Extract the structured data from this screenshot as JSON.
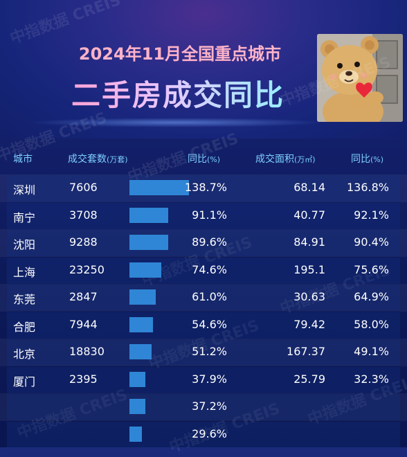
{
  "header": {
    "title_line1": "2024年11月全国重点城市",
    "title_line2": "二手房成交同比"
  },
  "watermark_text": "中指数据 CREIS",
  "columns": {
    "city": "城市",
    "units": "成交套数",
    "units_unit": "(万套)",
    "units_yoy": "同比",
    "units_yoy_unit": "(%)",
    "area": "成交面积",
    "area_unit": "(万㎡)",
    "area_yoy": "同比",
    "area_yoy_unit": "(%)"
  },
  "chart_data": {
    "type": "table",
    "bar_max": 138.7,
    "rows": [
      {
        "city": "深圳",
        "units": "7606",
        "units_yoy": 138.7,
        "units_yoy_label": "138.7%",
        "area": "68.14",
        "area_yoy_label": "136.8%"
      },
      {
        "city": "南宁",
        "units": "3708",
        "units_yoy": 91.1,
        "units_yoy_label": "91.1%",
        "area": "40.77",
        "area_yoy_label": "92.1%"
      },
      {
        "city": "沈阳",
        "units": "9288",
        "units_yoy": 89.6,
        "units_yoy_label": "89.6%",
        "area": "84.91",
        "area_yoy_label": "90.4%"
      },
      {
        "city": "上海",
        "units": "23250",
        "units_yoy": 74.6,
        "units_yoy_label": "74.6%",
        "area": "195.1",
        "area_yoy_label": "75.6%"
      },
      {
        "city": "东莞",
        "units": "2847",
        "units_yoy": 61.0,
        "units_yoy_label": "61.0%",
        "area": "30.63",
        "area_yoy_label": "64.9%"
      },
      {
        "city": "合肥",
        "units": "7944",
        "units_yoy": 54.6,
        "units_yoy_label": "54.6%",
        "area": "79.42",
        "area_yoy_label": "58.0%"
      },
      {
        "city": "北京",
        "units": "18830",
        "units_yoy": 51.2,
        "units_yoy_label": "51.2%",
        "area": "167.37",
        "area_yoy_label": "49.1%"
      },
      {
        "city": "厦门",
        "units": "2395",
        "units_yoy": 37.9,
        "units_yoy_label": "37.9%",
        "area": "25.79",
        "area_yoy_label": "32.3%"
      },
      {
        "city": "",
        "units": "",
        "units_yoy": 37.2,
        "units_yoy_label": "37.2%",
        "area": "",
        "area_yoy_label": ""
      },
      {
        "city": "",
        "units": "",
        "units_yoy": 29.6,
        "units_yoy_label": "29.6%",
        "area": "",
        "area_yoy_label": ""
      }
    ]
  },
  "colors": {
    "bar": "#2f86d6",
    "header_text": "#7fd0ff",
    "title_pink": "#ffb3c8"
  },
  "photo_icon": "teddy-bear-heart-photo"
}
